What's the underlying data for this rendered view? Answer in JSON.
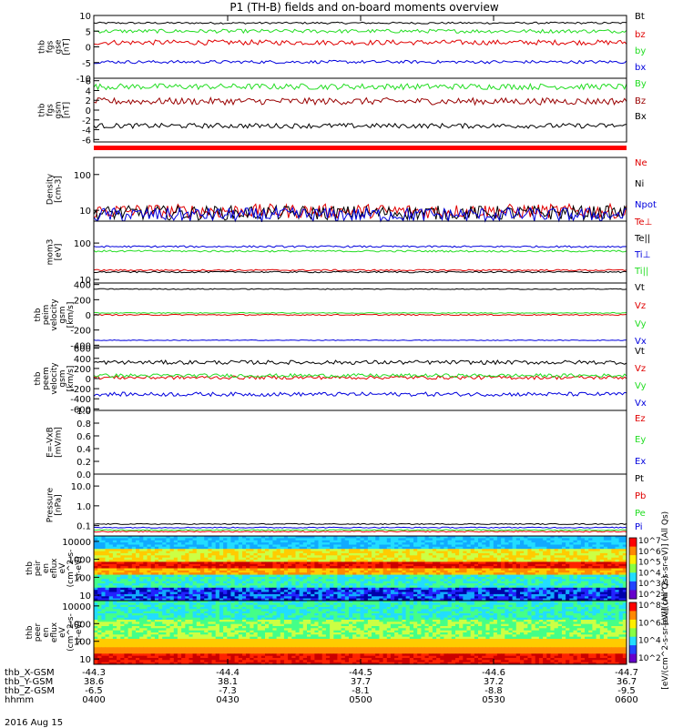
{
  "title": "P1 (TH-B) fields and on-board moments overview",
  "date_label": "2016 Aug 15",
  "colors": {
    "black": "#000000",
    "red": "#e00000",
    "green": "#22dd22",
    "blue": "#0000dd",
    "darkred": "#990000"
  },
  "chart_data": [
    {
      "type": "line",
      "id": "fgs_gse",
      "ylabel": [
        "thb",
        "fgs",
        "gse",
        "[nT]"
      ],
      "yticks": [
        10,
        5,
        0,
        -5,
        -10
      ],
      "ylim": [
        -10,
        10
      ],
      "series": [
        {
          "name": "Bt",
          "color": "#000000",
          "level": 7.6,
          "noise": 0.3
        },
        {
          "name": "bz",
          "color": "#e00000",
          "level": 1.4,
          "noise": 0.8
        },
        {
          "name": "by",
          "color": "#22dd22",
          "level": 5.0,
          "noise": 0.6
        },
        {
          "name": "bx",
          "color": "#0000dd",
          "level": -4.8,
          "noise": 0.5
        }
      ]
    },
    {
      "type": "line",
      "id": "fgs_gsm",
      "ylabel": [
        "thb",
        "fgs",
        "gsm",
        "[nT]"
      ],
      "yticks": [
        6,
        4,
        2,
        0,
        -2,
        -4,
        -6
      ],
      "ylim": [
        -6.5,
        6.5
      ],
      "series": [
        {
          "name": "By",
          "color": "#22dd22",
          "level": 4.8,
          "noise": 0.6
        },
        {
          "name": "Bz",
          "color": "#990000",
          "level": 1.8,
          "noise": 0.7
        },
        {
          "name": "Bx",
          "color": "#000000",
          "level": -3.2,
          "noise": 0.5
        }
      ]
    },
    {
      "type": "line",
      "id": "density",
      "ylabel": [
        "Density",
        "[cm-3]"
      ],
      "ytick_labels": [
        "100",
        "10"
      ],
      "scale": "log",
      "ylim": [
        5,
        300
      ],
      "series": [
        {
          "name": "Ne",
          "color": "#e00000",
          "level": 9.5,
          "noise": 0.4
        },
        {
          "name": "Ni",
          "color": "#000000",
          "level": 8.5,
          "noise": 0.4
        },
        {
          "name": "Npot",
          "color": "#0000dd",
          "level": 7.5,
          "noise": 0.4
        }
      ]
    },
    {
      "type": "line",
      "id": "temperature",
      "ylabel": [
        "mom3",
        "[eV]"
      ],
      "ytick_labels": [
        "100",
        "10"
      ],
      "scale": "log",
      "ylim": [
        8,
        400
      ],
      "legend": [
        "Te⊥",
        "Te||",
        "Ti⊥",
        "Ti||"
      ],
      "legend_colors": [
        "#e00000",
        "#000000",
        "#0000dd",
        "#22dd22"
      ],
      "series": [
        {
          "name": "Ti⊥",
          "color": "#0000dd",
          "level": 80,
          "noise": 0.05
        },
        {
          "name": "Ti||",
          "color": "#22dd22",
          "level": 60,
          "noise": 0.05
        },
        {
          "name": "Te⊥",
          "color": "#e00000",
          "level": 18,
          "noise": 0.04
        },
        {
          "name": "Te||",
          "color": "#000000",
          "level": 16,
          "noise": 0.04
        }
      ]
    },
    {
      "type": "line",
      "id": "vi",
      "ylabel": [
        "thb",
        "peim",
        "velocity",
        "gsm",
        "[km/s]"
      ],
      "yticks": [
        400,
        200,
        0,
        -200,
        -400
      ],
      "ylim": [
        -420,
        420
      ],
      "series": [
        {
          "name": "Vt",
          "color": "#000000",
          "level": 340,
          "noise": 6
        },
        {
          "name": "Vz",
          "color": "#e00000",
          "level": 0,
          "noise": 8
        },
        {
          "name": "Vy",
          "color": "#22dd22",
          "level": 25,
          "noise": 6
        },
        {
          "name": "Vx",
          "color": "#0000dd",
          "level": -335,
          "noise": 5
        }
      ]
    },
    {
      "type": "line",
      "id": "ve",
      "ylabel": [
        "thb",
        "peem",
        "velocity",
        "gsm",
        "[km/s]"
      ],
      "yticks": [
        600,
        400,
        200,
        0,
        -200,
        -400,
        -600
      ],
      "ylim": [
        -630,
        630
      ],
      "series": [
        {
          "name": "Vt",
          "color": "#000000",
          "level": 320,
          "noise": 40
        },
        {
          "name": "Vz",
          "color": "#e00000",
          "level": 20,
          "noise": 35
        },
        {
          "name": "Vy",
          "color": "#22dd22",
          "level": 60,
          "noise": 35
        },
        {
          "name": "Vx",
          "color": "#0000dd",
          "level": -310,
          "noise": 40
        }
      ]
    },
    {
      "type": "line",
      "id": "efield",
      "ylabel": [
        "E=-VxB",
        "[mV/m]"
      ],
      "yticks": [
        1.0,
        0.8,
        0.6,
        0.4,
        0.2,
        0.0
      ],
      "ytick_labels": [
        "1.0",
        "0.8",
        "0.6",
        "0.4",
        "0.2",
        "0.0"
      ],
      "ylim": [
        0,
        1.0
      ],
      "series": [
        {
          "name": "Ez",
          "color": "#e00000"
        },
        {
          "name": "Ey",
          "color": "#22dd22"
        },
        {
          "name": "Ex",
          "color": "#0000dd"
        }
      ]
    },
    {
      "type": "line",
      "id": "pressure",
      "ylabel": [
        "Pressure",
        "[nPa]"
      ],
      "ytick_labels": [
        "10.0",
        "1.0",
        "0.1"
      ],
      "scale": "log",
      "ylim": [
        0.03,
        40
      ],
      "series": [
        {
          "name": "Pt",
          "color": "#000000",
          "level": 0.12,
          "noise": 0.05
        },
        {
          "name": "Pb",
          "color": "#e00000",
          "level": 0.05,
          "noise": 0.05
        },
        {
          "name": "Pe",
          "color": "#22dd22",
          "level": 0.06,
          "noise": 0.05
        },
        {
          "name": "Pi",
          "color": "#0000dd",
          "level": 0.08,
          "noise": 0.05
        }
      ]
    },
    {
      "type": "heatmap",
      "id": "peir",
      "ylabel": [
        "thb",
        "peir",
        "en",
        "eflux",
        "eV",
        "(cm^2-s-",
        "sr-eV)"
      ],
      "ytick_labels": [
        "10000",
        "1000",
        "100",
        "10"
      ],
      "scale": "log",
      "ylim": [
        5,
        20000
      ],
      "colorbar_label": "[eV/(cm^2-s-sr-eV)] (All Qs)",
      "colorbar_ticks": [
        "10^7",
        "10^6",
        "10^5",
        "10^4",
        "10^3",
        "10^2"
      ]
    },
    {
      "type": "heatmap",
      "id": "peer",
      "ylabel": [
        "thb",
        "peer",
        "en",
        "eflux",
        "eV",
        "(cm^2-s-",
        "sr-eV)"
      ],
      "ytick_labels": [
        "10000",
        "1000",
        "100",
        "10"
      ],
      "scale": "log",
      "ylim": [
        5,
        20000
      ],
      "colorbar_label": "[eV/(cm^2-s-sr-eV)] (All Qs)",
      "colorbar_ticks": [
        "10^8",
        "10^6",
        "10^4",
        "10^2"
      ]
    }
  ],
  "xaxis": {
    "rows": [
      {
        "label": "thb_X-GSM",
        "values": [
          "-44.3",
          "-44.4",
          "-44.5",
          "-44.6",
          "-44.7"
        ]
      },
      {
        "label": "thb_Y-GSM",
        "values": [
          "38.6",
          "38.1",
          "37.7",
          "37.2",
          "36.7"
        ]
      },
      {
        "label": "thb_Z-GSM",
        "values": [
          "-6.5",
          "-7.3",
          "-8.1",
          "-8.8",
          "-9.5"
        ]
      },
      {
        "label": "hhmm",
        "values": [
          "0400",
          "0430",
          "0500",
          "0530",
          "0600"
        ]
      }
    ]
  }
}
